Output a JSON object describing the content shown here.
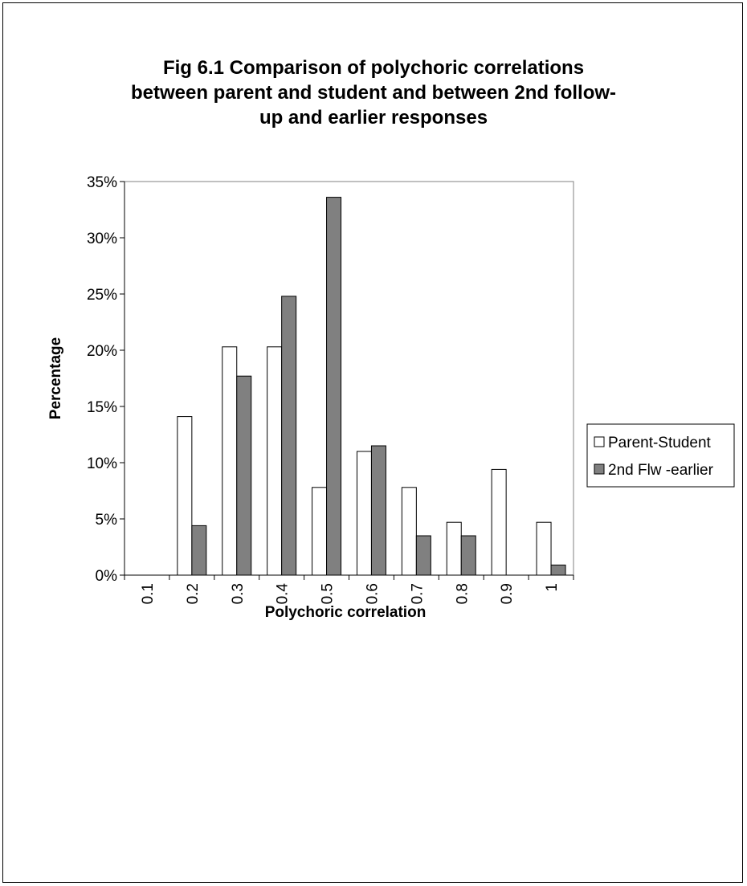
{
  "chart_data": {
    "type": "bar",
    "title_lines": [
      "Fig 6.1 Comparison of polychoric correlations",
      "between parent and student and between 2nd follow-",
      "up and earlier responses"
    ],
    "xlabel": "Polychoric correlation",
    "ylabel": "Percentage",
    "categories": [
      "0.1",
      "0.2",
      "0.3",
      "0.4",
      "0.5",
      "0.6",
      "0.7",
      "0.8",
      "0.9",
      "1"
    ],
    "y_ticks": [
      "0%",
      "5%",
      "10%",
      "15%",
      "20%",
      "25%",
      "30%",
      "35%"
    ],
    "ylim": [
      0,
      35
    ],
    "grid": false,
    "legend_position": "right",
    "series": [
      {
        "name": "Parent-Student",
        "color": "#ffffff",
        "values": [
          0,
          14.1,
          20.3,
          20.3,
          7.8,
          11.0,
          7.8,
          4.7,
          9.4,
          4.7
        ]
      },
      {
        "name": "2nd Flw -earlier",
        "color": "#808080",
        "values": [
          0,
          4.4,
          17.7,
          24.8,
          33.6,
          11.5,
          3.5,
          3.5,
          0,
          0.9
        ]
      }
    ]
  }
}
